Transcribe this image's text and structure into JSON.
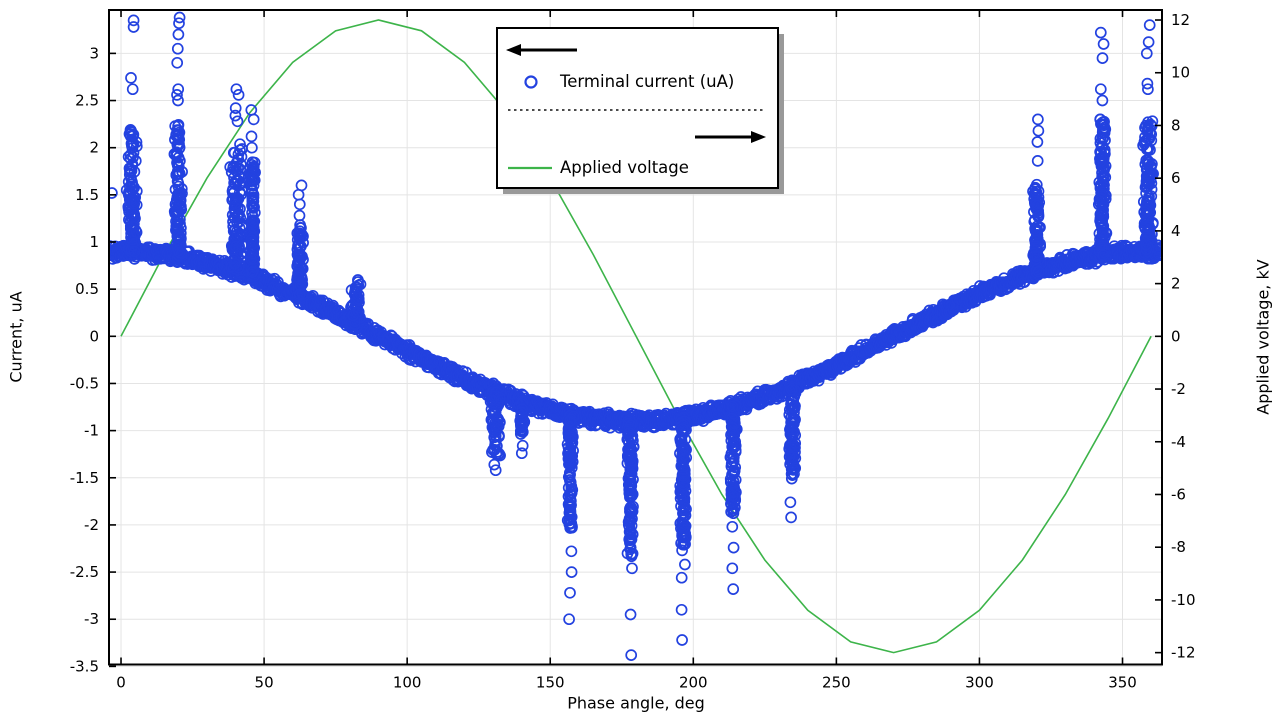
{
  "page": {
    "background": "#ffffff"
  },
  "chart_data": {
    "type": "scatter",
    "title": "",
    "xlabel": "Phase angle, deg",
    "ylabel_left": "Current, uA",
    "ylabel_right": "Applied voltage, kV",
    "xlim": [
      -4.2,
      363.8
    ],
    "ylim_left": [
      -3.48,
      3.46
    ],
    "ylim_right": [
      -12.45,
      12.38
    ],
    "x_ticks": [
      0,
      50,
      100,
      150,
      200,
      250,
      300,
      350
    ],
    "y_ticks_left": [
      3,
      2.5,
      2,
      1.5,
      1,
      0.5,
      0,
      -0.5,
      -1,
      -1.5,
      -2,
      -2.5,
      -3,
      -3.5
    ],
    "y_ticks_right": [
      12,
      10,
      8,
      6,
      4,
      2,
      0,
      -2,
      -4,
      -6,
      -8,
      -10,
      -12
    ],
    "grid": {
      "show": true,
      "color": "#e4e4e4",
      "x_step_deg": 50,
      "y_step_uA": 0.5
    },
    "axis_color": "#000000",
    "render_seed": 20240917,
    "legend": {
      "position": "top-center",
      "separator": "dotted",
      "entries": [
        {
          "label": "Terminal current (uA)",
          "marker": "open-circle",
          "color": "#2342e0",
          "axis": "left",
          "axis_arrow": "left"
        },
        {
          "label": "Applied voltage",
          "marker": "line",
          "color": "#3db44a",
          "axis": "right",
          "axis_arrow": "right"
        }
      ]
    },
    "series": [
      {
        "name": "Terminal current (uA)",
        "axis": "left",
        "type": "scatter",
        "marker": "open-circle",
        "color": "#2342e0",
        "band": {
          "model": "0.9*cos(phase)",
          "amplitude_uA": 0.9,
          "thickness_uA": 0.17,
          "phase_range_deg": [
            -4,
            363
          ],
          "sample_step_deg": 0.4,
          "points_per_sample": 3
        },
        "discharge_spikes": [
          {
            "phase_deg": 4,
            "width_deg": 3.5,
            "dense_to_uA": 2.2,
            "outliers_uA": [
              2.62,
              2.74,
              3.28,
              3.35
            ]
          },
          {
            "phase_deg": 20,
            "width_deg": 3,
            "dense_to_uA": 2.25,
            "outliers_uA": [
              2.5,
              2.56,
              2.62,
              2.9,
              3.05,
              3.2,
              3.32,
              3.38
            ]
          },
          {
            "phase_deg": 40.5,
            "width_deg": 5,
            "dense_to_uA": 2.05,
            "outliers_uA": [
              2.28,
              2.34,
              2.42,
              2.56,
              2.62
            ]
          },
          {
            "phase_deg": 46,
            "width_deg": 2,
            "dense_to_uA": 1.85,
            "outliers_uA": [
              2.0,
              2.12,
              2.3,
              2.4
            ]
          },
          {
            "phase_deg": 62.5,
            "width_deg": 2.5,
            "dense_to_uA": 1.2,
            "outliers_uA": [
              1.28,
              1.4,
              1.5,
              1.6
            ]
          },
          {
            "phase_deg": 82,
            "width_deg": 4,
            "dense_to_uA": 0.58,
            "outliers_uA": []
          },
          {
            "phase_deg": 131,
            "width_deg": 4,
            "dense_to_uA": -1.28,
            "outliers_uA": [
              -1.36,
              -1.42
            ]
          },
          {
            "phase_deg": 140,
            "width_deg": 2,
            "dense_to_uA": -1.05,
            "outliers_uA": [
              -1.16,
              -1.24
            ]
          },
          {
            "phase_deg": 157,
            "width_deg": 2.5,
            "dense_to_uA": -2.05,
            "outliers_uA": [
              -2.28,
              -2.5,
              -2.72,
              -3.0
            ]
          },
          {
            "phase_deg": 178,
            "width_deg": 2.5,
            "dense_to_uA": -2.32,
            "outliers_uA": [
              -2.46,
              -2.95,
              -3.38
            ]
          },
          {
            "phase_deg": 196.5,
            "width_deg": 2.5,
            "dense_to_uA": -2.28,
            "outliers_uA": [
              -2.42,
              -2.56,
              -2.9,
              -3.22
            ]
          },
          {
            "phase_deg": 214,
            "width_deg": 2.5,
            "dense_to_uA": -1.86,
            "outliers_uA": [
              -2.02,
              -2.24,
              -2.46,
              -2.68
            ]
          },
          {
            "phase_deg": 234.5,
            "width_deg": 2.5,
            "dense_to_uA": -1.52,
            "outliers_uA": [
              -1.76,
              -1.92
            ]
          },
          {
            "phase_deg": 320,
            "width_deg": 3,
            "dense_to_uA": 1.62,
            "outliers_uA": [
              1.86,
              2.06,
              2.18,
              2.3
            ]
          },
          {
            "phase_deg": 343,
            "width_deg": 3,
            "dense_to_uA": 2.3,
            "outliers_uA": [
              2.5,
              2.62,
              2.95,
              3.1,
              3.22
            ]
          },
          {
            "phase_deg": 359,
            "width_deg": 4,
            "dense_to_uA": 2.28,
            "outliers_uA": [
              2.62,
              2.68,
              3.0,
              3.12,
              3.3
            ]
          }
        ],
        "stray_points_deg_uA": [
          [
            -3.2,
            1.52
          ],
          [
            2.0,
            1.55
          ]
        ]
      },
      {
        "name": "Applied voltage",
        "axis": "right",
        "type": "line",
        "color": "#3db44a",
        "model": "12*sin(phase)",
        "amplitude_kV": 12,
        "phase_range_deg": [
          0,
          360
        ],
        "sample_step_deg": 15
      }
    ]
  }
}
